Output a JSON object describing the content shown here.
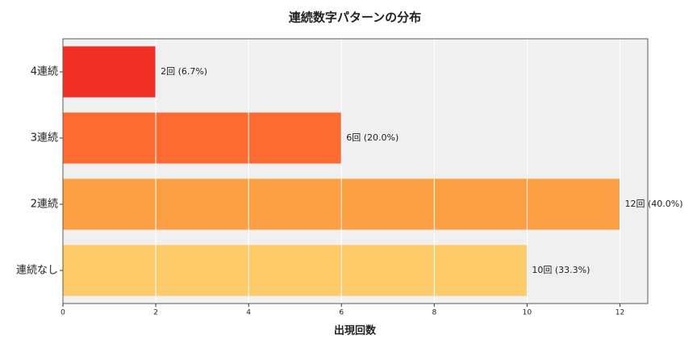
{
  "chart_data": {
    "type": "barh",
    "title": "連続数字パターンの分布",
    "xlabel": "出現回数",
    "categories": [
      "4連続",
      "3連続",
      "2連続",
      "連続なし"
    ],
    "values": [
      2,
      6,
      12,
      10
    ],
    "value_labels": [
      "2回 (6.7%)",
      "6回 (20.0%)",
      "12回 (40.0%)",
      "10回 (33.3%)"
    ],
    "colors": [
      "#f03024",
      "#fd6a32",
      "#fd9f44",
      "#fecb6a"
    ],
    "xlim": [
      0,
      12.6
    ],
    "xticks": [
      0,
      2,
      4,
      6,
      8,
      10,
      12
    ],
    "grid": true
  }
}
